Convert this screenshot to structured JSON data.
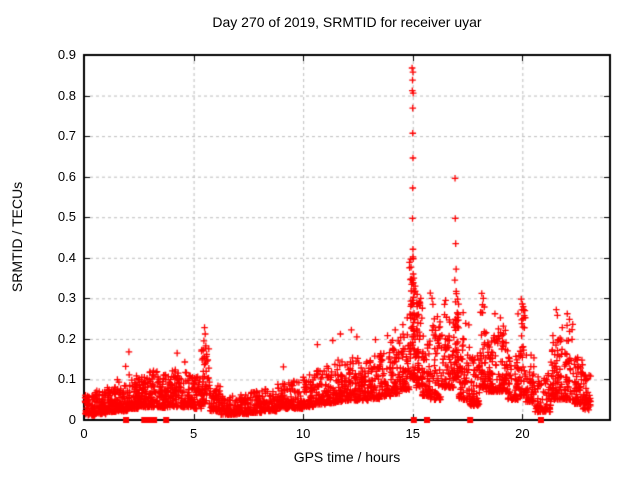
{
  "title": "Day 270 of 2019, SRMTID for receiver uyar",
  "style": {
    "background": "#ffffff",
    "axis_color": "#000000",
    "grid_color": "#bdbdbd",
    "marker_color": "#ff0000",
    "text_color": "#000000"
  },
  "chart_data": {
    "type": "scatter",
    "title": "Day 270 of 2019, SRMTID for receiver uyar",
    "xlabel": "GPS time / hours",
    "ylabel": "SRMTID / TECUs",
    "xlim": [
      0,
      24
    ],
    "ylim": [
      0,
      0.9
    ],
    "x_ticks": {
      "values": [
        0,
        5,
        10,
        15,
        20
      ],
      "labels": [
        "0",
        "5",
        "10",
        "15",
        "20"
      ]
    },
    "y_ticks": {
      "values": [
        0,
        0.1,
        0.2,
        0.3,
        0.4,
        0.5,
        0.6,
        0.7,
        0.8,
        0.9
      ],
      "labels": [
        "0",
        "0.1",
        "0.2",
        "0.3",
        "0.4",
        "0.5",
        "0.6",
        "0.7",
        "0.8",
        "0.9"
      ]
    },
    "grid": true,
    "grid_dash": [
      3,
      3
    ],
    "legend": "none",
    "random_seed": 20190270,
    "marker_size": 7,
    "series": [
      {
        "name": "srmtid-plus-markers",
        "marker": "plus",
        "color": "#ff0000",
        "notable_points": [
          [
            14.97,
            0.868
          ],
          [
            15.01,
            0.858
          ],
          [
            14.99,
            0.838
          ],
          [
            14.98,
            0.812
          ],
          [
            15.02,
            0.806
          ],
          [
            15.0,
            0.769
          ],
          [
            15.0,
            0.707
          ],
          [
            15.01,
            0.646
          ],
          [
            15.0,
            0.572
          ],
          [
            14.99,
            0.497
          ],
          [
            15.01,
            0.421
          ],
          [
            15.02,
            0.36
          ],
          [
            15.05,
            0.35
          ],
          [
            14.99,
            0.345
          ],
          [
            15.03,
            0.338
          ],
          [
            16.93,
            0.596
          ],
          [
            16.94,
            0.497
          ],
          [
            16.96,
            0.435
          ],
          [
            16.98,
            0.372
          ],
          [
            16.92,
            0.345
          ],
          [
            5.5,
            0.228
          ],
          [
            5.53,
            0.212
          ],
          [
            5.47,
            0.195
          ],
          [
            5.56,
            0.183
          ],
          [
            5.44,
            0.172
          ],
          [
            5.6,
            0.162
          ],
          [
            1.9,
            0.132
          ],
          [
            2.05,
            0.168
          ],
          [
            4.25,
            0.165
          ],
          [
            4.6,
            0.143
          ],
          [
            9.1,
            0.131
          ],
          [
            10.65,
            0.186
          ],
          [
            11.35,
            0.196
          ],
          [
            11.7,
            0.212
          ],
          [
            12.2,
            0.222
          ],
          [
            12.45,
            0.205
          ],
          [
            13.3,
            0.198
          ],
          [
            13.85,
            0.208
          ],
          [
            14.2,
            0.222
          ],
          [
            14.55,
            0.235
          ],
          [
            14.75,
            0.252
          ],
          [
            15.2,
            0.31
          ],
          [
            15.3,
            0.29
          ],
          [
            15.8,
            0.313
          ],
          [
            15.88,
            0.3
          ],
          [
            15.92,
            0.285
          ],
          [
            16.5,
            0.295
          ],
          [
            16.45,
            0.285
          ],
          [
            17.3,
            0.265
          ],
          [
            18.15,
            0.312
          ],
          [
            18.22,
            0.3
          ],
          [
            18.75,
            0.262
          ],
          [
            19.0,
            0.252
          ],
          [
            19.95,
            0.298
          ],
          [
            20.0,
            0.286
          ],
          [
            20.05,
            0.272
          ],
          [
            21.55,
            0.272
          ],
          [
            21.6,
            0.258
          ],
          [
            22.05,
            0.262
          ],
          [
            22.15,
            0.248
          ],
          [
            22.3,
            0.236
          ]
        ],
        "density_segments": [
          [
            0.05,
            0.5,
            70,
            0.012,
            0.062
          ],
          [
            0.5,
            1.0,
            75,
            0.015,
            0.072
          ],
          [
            1.0,
            1.5,
            70,
            0.02,
            0.082
          ],
          [
            1.5,
            2.0,
            70,
            0.022,
            0.1
          ],
          [
            2.0,
            2.5,
            72,
            0.028,
            0.112
          ],
          [
            2.5,
            3.0,
            70,
            0.032,
            0.112
          ],
          [
            3.0,
            3.5,
            70,
            0.032,
            0.122
          ],
          [
            3.5,
            4.0,
            65,
            0.03,
            0.112
          ],
          [
            4.0,
            4.5,
            65,
            0.032,
            0.128
          ],
          [
            4.5,
            5.0,
            62,
            0.032,
            0.122
          ],
          [
            5.0,
            5.35,
            42,
            0.028,
            0.11
          ],
          [
            5.35,
            5.75,
            52,
            0.04,
            0.185
          ],
          [
            5.75,
            6.25,
            52,
            0.022,
            0.085
          ],
          [
            6.25,
            7.0,
            78,
            0.013,
            0.062
          ],
          [
            7.0,
            7.6,
            68,
            0.015,
            0.062
          ],
          [
            7.6,
            8.2,
            68,
            0.018,
            0.072
          ],
          [
            8.2,
            8.8,
            68,
            0.022,
            0.078
          ],
          [
            8.8,
            9.4,
            68,
            0.028,
            0.092
          ],
          [
            9.4,
            10.0,
            68,
            0.028,
            0.098
          ],
          [
            10.0,
            10.5,
            58,
            0.032,
            0.112
          ],
          [
            10.5,
            11.0,
            58,
            0.038,
            0.122
          ],
          [
            11.0,
            11.5,
            58,
            0.042,
            0.138
          ],
          [
            11.5,
            12.0,
            58,
            0.045,
            0.152
          ],
          [
            12.0,
            12.5,
            58,
            0.048,
            0.158
          ],
          [
            12.5,
            13.0,
            58,
            0.048,
            0.148
          ],
          [
            13.0,
            13.5,
            58,
            0.052,
            0.162
          ],
          [
            13.5,
            14.0,
            58,
            0.058,
            0.172
          ],
          [
            14.0,
            14.5,
            60,
            0.065,
            0.205
          ],
          [
            14.5,
            14.85,
            48,
            0.075,
            0.215
          ],
          [
            14.85,
            15.12,
            72,
            0.1,
            0.42,
            1.7
          ],
          [
            15.12,
            15.45,
            58,
            0.08,
            0.3
          ],
          [
            15.45,
            15.8,
            52,
            0.06,
            0.24
          ],
          [
            15.8,
            16.3,
            62,
            0.05,
            0.27
          ],
          [
            16.3,
            16.9,
            72,
            0.08,
            0.27
          ],
          [
            16.9,
            17.1,
            45,
            0.1,
            0.33,
            1.7
          ],
          [
            17.1,
            17.6,
            62,
            0.05,
            0.24
          ],
          [
            17.6,
            18.05,
            60,
            0.035,
            0.16
          ],
          [
            18.05,
            18.35,
            48,
            0.08,
            0.29
          ],
          [
            18.35,
            18.65,
            45,
            0.07,
            0.2
          ],
          [
            18.65,
            19.35,
            90,
            0.07,
            0.24
          ],
          [
            19.35,
            19.8,
            52,
            0.05,
            0.18
          ],
          [
            19.8,
            20.15,
            50,
            0.06,
            0.28
          ],
          [
            20.15,
            20.55,
            45,
            0.045,
            0.16
          ],
          [
            20.55,
            21.3,
            68,
            0.02,
            0.115
          ],
          [
            21.3,
            21.7,
            55,
            0.05,
            0.21
          ],
          [
            21.7,
            22.35,
            70,
            0.05,
            0.235
          ],
          [
            22.35,
            22.75,
            55,
            0.04,
            0.155
          ],
          [
            22.75,
            23.12,
            45,
            0.025,
            0.115
          ]
        ],
        "segment_shape_default": 2.0
      },
      {
        "name": "flag-squares",
        "marker": "filled-square",
        "color": "#ff0000",
        "y": 0,
        "x_values": [
          1.92,
          2.75,
          2.9,
          3.05,
          3.2,
          3.75,
          15.05,
          15.65,
          17.62,
          20.85
        ]
      }
    ]
  }
}
